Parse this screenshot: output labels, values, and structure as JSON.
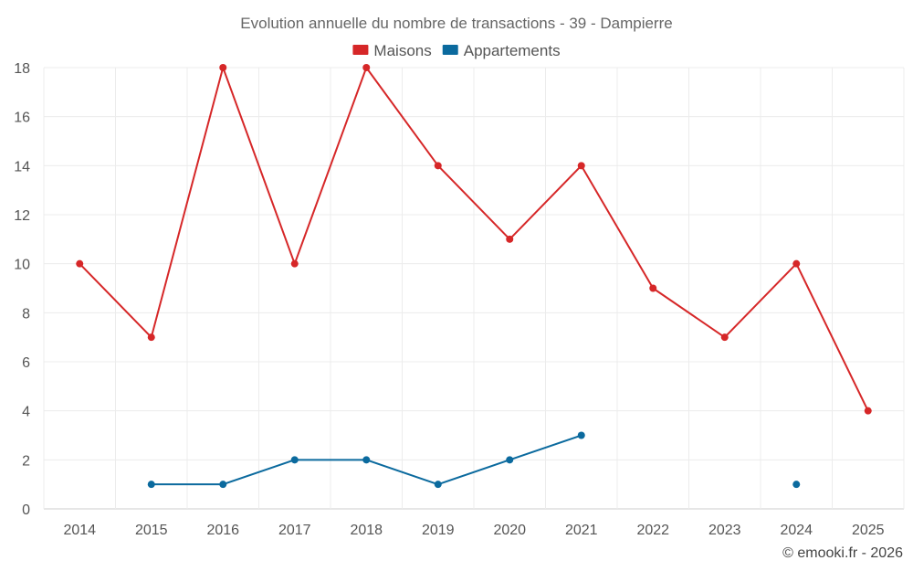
{
  "chart_data": {
    "type": "line",
    "title": "Evolution annuelle du nombre de transactions - 39 - Dampierre",
    "categories": [
      "2014",
      "2015",
      "2016",
      "2017",
      "2018",
      "2019",
      "2020",
      "2021",
      "2022",
      "2023",
      "2024",
      "2025"
    ],
    "series": [
      {
        "name": "Maisons",
        "color": "#d62728",
        "values": [
          10,
          7,
          18,
          10,
          18,
          14,
          11,
          14,
          9,
          7,
          10,
          4
        ]
      },
      {
        "name": "Appartements",
        "color": "#0b6a9e",
        "values": [
          null,
          1,
          1,
          2,
          2,
          1,
          2,
          3,
          null,
          null,
          1,
          null
        ]
      }
    ],
    "ylim": [
      0,
      18
    ],
    "yticks": [
      0,
      2,
      4,
      6,
      8,
      10,
      12,
      14,
      16,
      18
    ],
    "xlabel": "",
    "ylabel": "",
    "grid": true,
    "legend": "top-center"
  },
  "credit": "© emooki.fr - 2026"
}
